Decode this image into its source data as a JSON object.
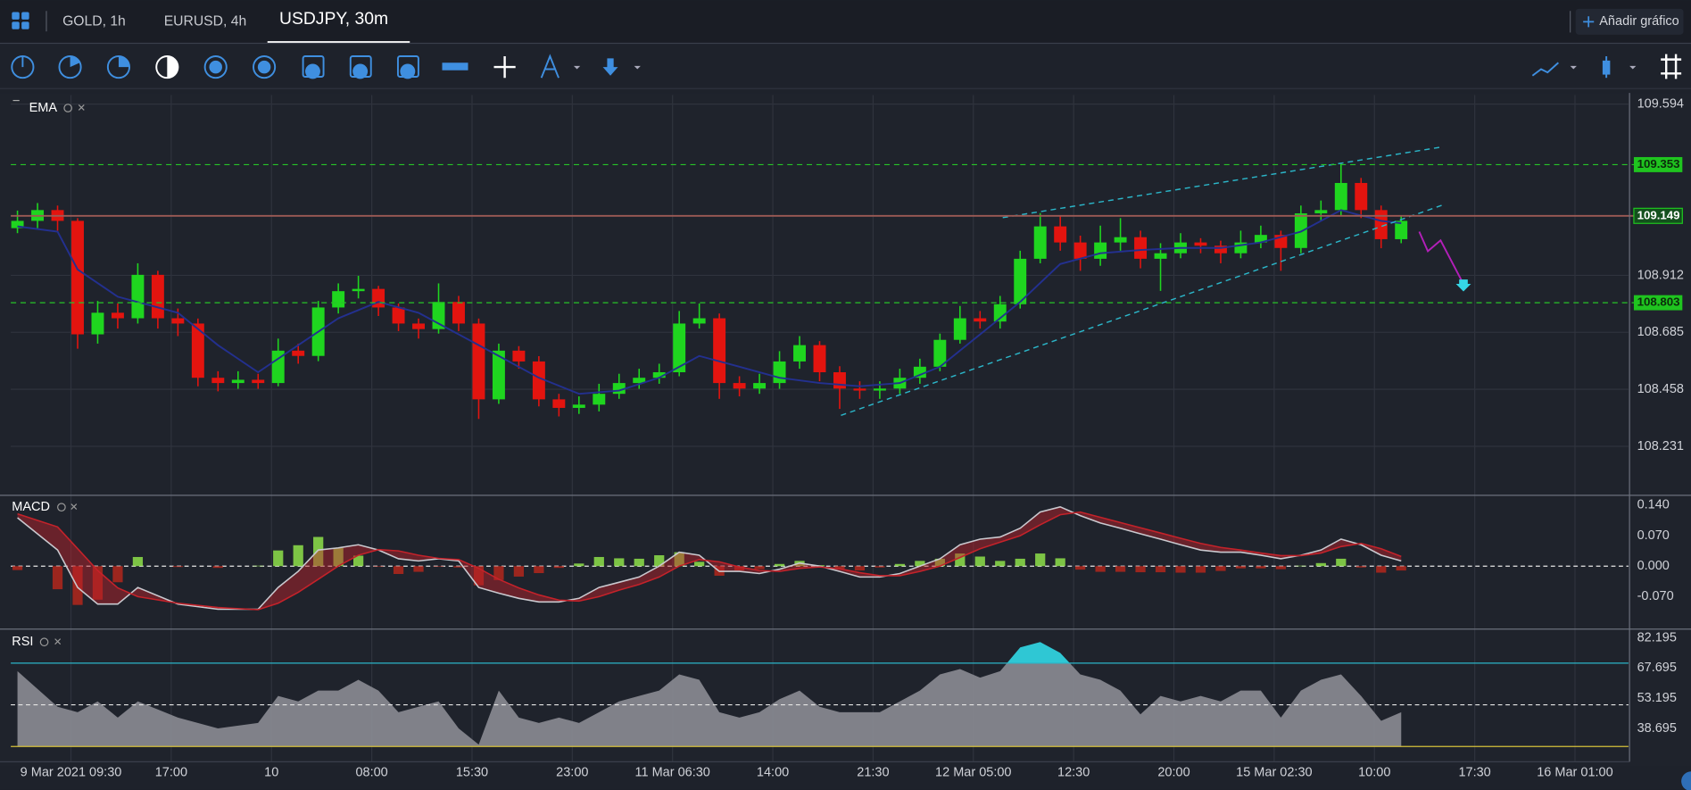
{
  "tabs": [
    "GOLD, 1h",
    "EURUSD, 4h",
    "USDJPY, 30m"
  ],
  "add_chart_button": "Añadir gráfico",
  "chart_data": [
    {
      "type": "candlestick",
      "title": "EMA",
      "xlim": [
        -1,
        241
      ],
      "ylim": [
        108.04,
        109.63
      ],
      "yticks": [
        108.231,
        108.458,
        108.685,
        108.912,
        109.594
      ],
      "xticks": [
        {
          "value": 8,
          "label": "9 Mar 2021 09:30"
        },
        {
          "value": 23,
          "label": "17:00"
        },
        {
          "value": 38,
          "label": "10"
        },
        {
          "value": 53,
          "label": "08:00"
        },
        {
          "value": 68,
          "label": "15:30"
        },
        {
          "value": 83,
          "label": "23:00"
        },
        {
          "value": 98,
          "label": "11 Mar 06:30"
        },
        {
          "value": 113,
          "label": "14:00"
        },
        {
          "value": 128,
          "label": "21:30"
        },
        {
          "value": 143,
          "label": "12 Mar 05:00"
        },
        {
          "value": 158,
          "label": "12:30"
        },
        {
          "value": 173,
          "label": "20:00"
        },
        {
          "value": 188,
          "label": "15 Mar 02:30"
        },
        {
          "value": 203,
          "label": "10:00"
        },
        {
          "value": 218,
          "label": "17:30"
        },
        {
          "value": 233,
          "label": "16 Mar 01:00"
        }
      ],
      "grid": true,
      "colors": {
        "up": "#1fd51f",
        "down": "#e3140f"
      },
      "x": [
        0,
        3,
        6,
        9,
        12,
        15,
        18,
        21,
        24,
        27,
        30,
        33,
        36,
        39,
        42,
        45,
        48,
        51,
        54,
        57,
        60,
        63,
        66,
        69,
        72,
        75,
        78,
        81,
        84,
        87,
        90,
        93,
        96,
        99,
        102,
        105,
        108,
        111,
        114,
        117,
        120,
        123,
        126,
        129,
        132,
        135,
        138,
        141,
        144,
        147,
        150,
        153,
        156,
        159,
        162,
        165,
        168,
        171,
        174,
        177,
        180,
        183,
        186,
        189,
        192,
        195,
        198,
        201,
        204,
        207
      ],
      "open": [
        109.1,
        109.129,
        109.172,
        109.129,
        108.677,
        108.763,
        108.741,
        108.914,
        108.741,
        108.72,
        108.504,
        108.483,
        108.496,
        108.483,
        108.612,
        108.591,
        108.784,
        108.849,
        108.858,
        108.784,
        108.72,
        108.698,
        108.806,
        108.72,
        108.418,
        108.612,
        108.569,
        108.418,
        108.384,
        108.397,
        108.44,
        108.483,
        108.504,
        108.526,
        108.72,
        108.741,
        108.483,
        108.461,
        108.483,
        108.569,
        108.634,
        108.526,
        108.461,
        108.453,
        108.461,
        108.504,
        108.548,
        108.655,
        108.741,
        108.728,
        108.797,
        108.978,
        109.107,
        109.043,
        108.978,
        109.043,
        109.064,
        108.978,
        109.0,
        109.043,
        109.03,
        109.0,
        109.043,
        109.073,
        109.021,
        109.159,
        109.172,
        109.28,
        109.172,
        109.056
      ],
      "high": [
        109.17,
        109.2,
        109.19,
        109.14,
        108.81,
        108.8,
        108.96,
        108.93,
        108.78,
        108.74,
        108.53,
        108.53,
        108.52,
        108.66,
        108.64,
        108.81,
        108.88,
        108.91,
        108.87,
        108.8,
        108.74,
        108.88,
        108.83,
        108.74,
        108.64,
        108.63,
        108.59,
        108.44,
        108.43,
        108.48,
        108.52,
        108.54,
        108.56,
        108.77,
        108.8,
        108.76,
        108.51,
        108.52,
        108.61,
        108.67,
        108.65,
        108.55,
        108.49,
        108.49,
        108.54,
        108.58,
        108.68,
        108.79,
        108.77,
        108.83,
        109.01,
        109.16,
        109.15,
        109.07,
        109.11,
        109.14,
        109.09,
        109.04,
        109.08,
        109.06,
        109.05,
        109.09,
        109.11,
        109.09,
        109.19,
        109.21,
        109.36,
        109.3,
        109.19,
        109.15
      ],
      "low": [
        109.08,
        109.1,
        109.09,
        108.62,
        108.64,
        108.7,
        108.72,
        108.7,
        108.67,
        108.47,
        108.45,
        108.46,
        108.46,
        108.47,
        108.56,
        108.57,
        108.76,
        108.82,
        108.75,
        108.69,
        108.66,
        108.68,
        108.69,
        108.34,
        108.4,
        108.54,
        108.39,
        108.35,
        108.36,
        108.37,
        108.42,
        108.46,
        108.48,
        108.51,
        108.7,
        108.42,
        108.43,
        108.44,
        108.46,
        108.54,
        108.49,
        108.38,
        108.42,
        108.42,
        108.44,
        108.48,
        108.53,
        108.64,
        108.7,
        108.7,
        108.78,
        108.96,
        109.01,
        108.93,
        108.95,
        109.01,
        108.94,
        108.85,
        108.98,
        109.0,
        108.96,
        108.98,
        109.02,
        108.93,
        109.0,
        109.13,
        109.15,
        109.14,
        109.02,
        109.04
      ],
      "close": [
        109.129,
        109.172,
        109.129,
        108.677,
        108.763,
        108.741,
        108.914,
        108.741,
        108.72,
        108.504,
        108.483,
        108.496,
        108.483,
        108.612,
        108.591,
        108.784,
        108.849,
        108.858,
        108.784,
        108.72,
        108.698,
        108.806,
        108.72,
        108.418,
        108.612,
        108.569,
        108.418,
        108.384,
        108.397,
        108.44,
        108.483,
        108.504,
        108.526,
        108.72,
        108.741,
        108.483,
        108.461,
        108.483,
        108.569,
        108.634,
        108.526,
        108.461,
        108.453,
        108.461,
        108.504,
        108.548,
        108.655,
        108.741,
        108.728,
        108.797,
        108.978,
        109.107,
        109.043,
        108.978,
        109.043,
        109.064,
        108.978,
        109.0,
        109.043,
        109.03,
        109.0,
        109.043,
        109.073,
        109.021,
        109.159,
        109.172,
        109.28,
        109.172,
        109.056,
        109.129
      ],
      "ema": {
        "color": "#23308f",
        "x": [
          0,
          6,
          9,
          15,
          24,
          30,
          36,
          42,
          48,
          54,
          60,
          66,
          72,
          78,
          84,
          90,
          96,
          102,
          108,
          114,
          120,
          126,
          132,
          138,
          144,
          150,
          156,
          162,
          168,
          174,
          180,
          186,
          192,
          198,
          204,
          207
        ],
        "values": [
          109.107,
          109.086,
          108.935,
          108.827,
          108.763,
          108.634,
          108.526,
          108.634,
          108.741,
          108.806,
          108.763,
          108.677,
          108.591,
          108.504,
          108.44,
          108.453,
          108.504,
          108.591,
          108.548,
          108.504,
          108.483,
          108.47,
          108.483,
          108.548,
          108.677,
          108.806,
          108.957,
          109.0,
          109.013,
          109.021,
          109.021,
          109.043,
          109.086,
          109.172,
          109.129,
          109.12
        ]
      },
      "levels": [
        {
          "value": 109.353,
          "color": "#27c427",
          "style": "dashed"
        },
        {
          "value": 109.149,
          "color": "#9c5a55",
          "style": "solid"
        },
        {
          "value": 108.803,
          "color": "#27c427",
          "style": "dashed"
        }
      ],
      "trendlines": [
        {
          "color": "#2bb5c8",
          "x": [
            123.2,
            213.3
          ],
          "values": [
            108.354,
            109.193
          ]
        },
        {
          "color": "#2bb5c8",
          "x": [
            147.4,
            212.8
          ],
          "values": [
            109.142,
            109.422
          ]
        }
      ],
      "projection": {
        "color": "#b21fb8",
        "x": [
          209.7,
          211.0,
          212.9,
          216.2
        ],
        "values": [
          109.086,
          109.008,
          109.051,
          108.883
        ]
      }
    },
    {
      "type": "macd",
      "title": "MACD",
      "xlim": [
        -1,
        241
      ],
      "ylim": [
        -0.142,
        0.16
      ],
      "yticks": [
        {
          "value": -0.07,
          "label": "-0.070"
        },
        {
          "value": 0,
          "label": "0.000"
        },
        {
          "value": 0.07,
          "label": "0.070"
        },
        {
          "value": 0.14,
          "label": "0.140"
        }
      ],
      "levels": [
        0
      ],
      "x": [
        0,
        6,
        9,
        12,
        15,
        18,
        24,
        30,
        36,
        39,
        42,
        45,
        48,
        51,
        54,
        57,
        60,
        63,
        66,
        69,
        72,
        75,
        78,
        81,
        84,
        87,
        90,
        93,
        96,
        99,
        102,
        105,
        108,
        111,
        114,
        117,
        120,
        123,
        126,
        129,
        132,
        135,
        138,
        141,
        144,
        147,
        150,
        153,
        156,
        159,
        162,
        165,
        168,
        171,
        174,
        177,
        180,
        183,
        186,
        189,
        192,
        195,
        198,
        201,
        204,
        207
      ],
      "macd": [
        0.111,
        0.037,
        -0.049,
        -0.087,
        -0.087,
        -0.049,
        -0.087,
        -0.099,
        -0.099,
        -0.049,
        -0.012,
        0.037,
        0.042,
        0.049,
        0.037,
        0.017,
        0.012,
        0.017,
        0.012,
        -0.049,
        -0.062,
        -0.074,
        -0.082,
        -0.082,
        -0.074,
        -0.049,
        -0.037,
        -0.025,
        0,
        0.032,
        0.025,
        -0.012,
        -0.012,
        -0.017,
        -0.007,
        0.007,
        0,
        -0.012,
        -0.025,
        -0.025,
        -0.017,
        0,
        0.017,
        0.049,
        0.062,
        0.067,
        0.087,
        0.124,
        0.136,
        0.116,
        0.099,
        0.087,
        0.074,
        0.062,
        0.049,
        0.037,
        0.032,
        0.032,
        0.025,
        0.017,
        0.025,
        0.037,
        0.062,
        0.049,
        0.025,
        0.012
      ],
      "signal": [
        0.12,
        0.09,
        0.04,
        -0.01,
        -0.05,
        -0.07,
        -0.085,
        -0.095,
        -0.1,
        -0.085,
        -0.06,
        -0.03,
        0,
        0.025,
        0.038,
        0.035,
        0.025,
        0.018,
        0.015,
        -0.005,
        -0.03,
        -0.05,
        -0.066,
        -0.078,
        -0.08,
        -0.07,
        -0.055,
        -0.042,
        -0.025,
        0,
        0.015,
        0.01,
        -0.002,
        -0.01,
        -0.012,
        -0.005,
        -0.002,
        -0.006,
        -0.015,
        -0.022,
        -0.022,
        -0.012,
        0,
        0.02,
        0.04,
        0.055,
        0.07,
        0.095,
        0.118,
        0.124,
        0.112,
        0.1,
        0.088,
        0.076,
        0.064,
        0.052,
        0.043,
        0.037,
        0.03,
        0.024,
        0.024,
        0.03,
        0.045,
        0.052,
        0.04,
        0.022
      ],
      "histogram": [
        -0.009,
        -0.053,
        -0.089,
        -0.077,
        -0.037,
        0.021,
        -0.002,
        -0.004,
        0.001,
        0.036,
        0.048,
        0.067,
        0.042,
        0.024,
        -0.001,
        -0.018,
        -0.013,
        -0.001,
        -0.003,
        -0.044,
        -0.032,
        -0.024,
        -0.016,
        -0.004,
        0.006,
        0.021,
        0.018,
        0.017,
        0.025,
        0.032,
        0.01,
        -0.022,
        -0.01,
        -0.007,
        0.005,
        0.012,
        0.002,
        -0.006,
        -0.01,
        -0.003,
        0.005,
        0.012,
        0.017,
        0.029,
        0.022,
        0.012,
        0.017,
        0.029,
        0.018,
        -0.008,
        -0.013,
        -0.013,
        -0.014,
        -0.014,
        -0.015,
        -0.015,
        -0.011,
        -0.005,
        -0.005,
        -0.007,
        0.001,
        0.007,
        0.017,
        -0.003,
        -0.015,
        -0.01
      ],
      "colors": {
        "macd": "#c9c9cf",
        "signal": "#c4222a",
        "up": "#8ee04a",
        "down": "#b3271c"
      }
    },
    {
      "type": "rsi",
      "title": "RSI",
      "xlim": [
        -1,
        241
      ],
      "ylim": [
        22.64,
        85.82
      ],
      "yticks": [
        38.695,
        53.195,
        67.695,
        82.195
      ],
      "levels": [
        {
          "value": 70,
          "color": "#2bb5c8",
          "style": "solid"
        },
        {
          "value": 50,
          "color": "#e6e6e6",
          "style": "dashed"
        },
        {
          "value": 30,
          "color": "#d6c03a",
          "style": "solid"
        }
      ],
      "x": [
        0,
        6,
        9,
        12,
        15,
        18,
        24,
        30,
        36,
        39,
        42,
        45,
        48,
        51,
        54,
        57,
        60,
        63,
        66,
        69,
        72,
        75,
        78,
        81,
        84,
        87,
        90,
        93,
        96,
        99,
        102,
        105,
        108,
        111,
        114,
        117,
        120,
        123,
        126,
        129,
        132,
        135,
        138,
        141,
        144,
        147,
        150,
        153,
        156,
        159,
        162,
        165,
        168,
        171,
        174,
        177,
        180,
        183,
        186,
        189,
        192,
        195,
        198,
        201,
        204,
        207
      ],
      "values": [
        66.14,
        49.05,
        46.46,
        51.64,
        43.87,
        51.64,
        43.87,
        38.7,
        41.29,
        54.23,
        51.64,
        56.82,
        56.82,
        61.99,
        56.82,
        46.46,
        49.05,
        51.64,
        38.7,
        30.93,
        56.82,
        43.87,
        41.29,
        43.87,
        41.29,
        46.46,
        51.64,
        54.23,
        56.82,
        64.59,
        61.99,
        46.46,
        43.87,
        46.46,
        52.68,
        56.82,
        49.05,
        46.46,
        46.46,
        46.46,
        51.64,
        56.82,
        64.59,
        67.18,
        63.04,
        66.14,
        77.54,
        80.13,
        74.95,
        64.59,
        61.99,
        56.82,
        45.43,
        54.23,
        51.64,
        54.23,
        51.64,
        56.82,
        56.82,
        43.87,
        56.82,
        61.99,
        64.59,
        54.23,
        42.32,
        46.46
      ],
      "colors": {
        "area": "#8b8c93",
        "overbought": "#2fc7d4"
      }
    }
  ]
}
